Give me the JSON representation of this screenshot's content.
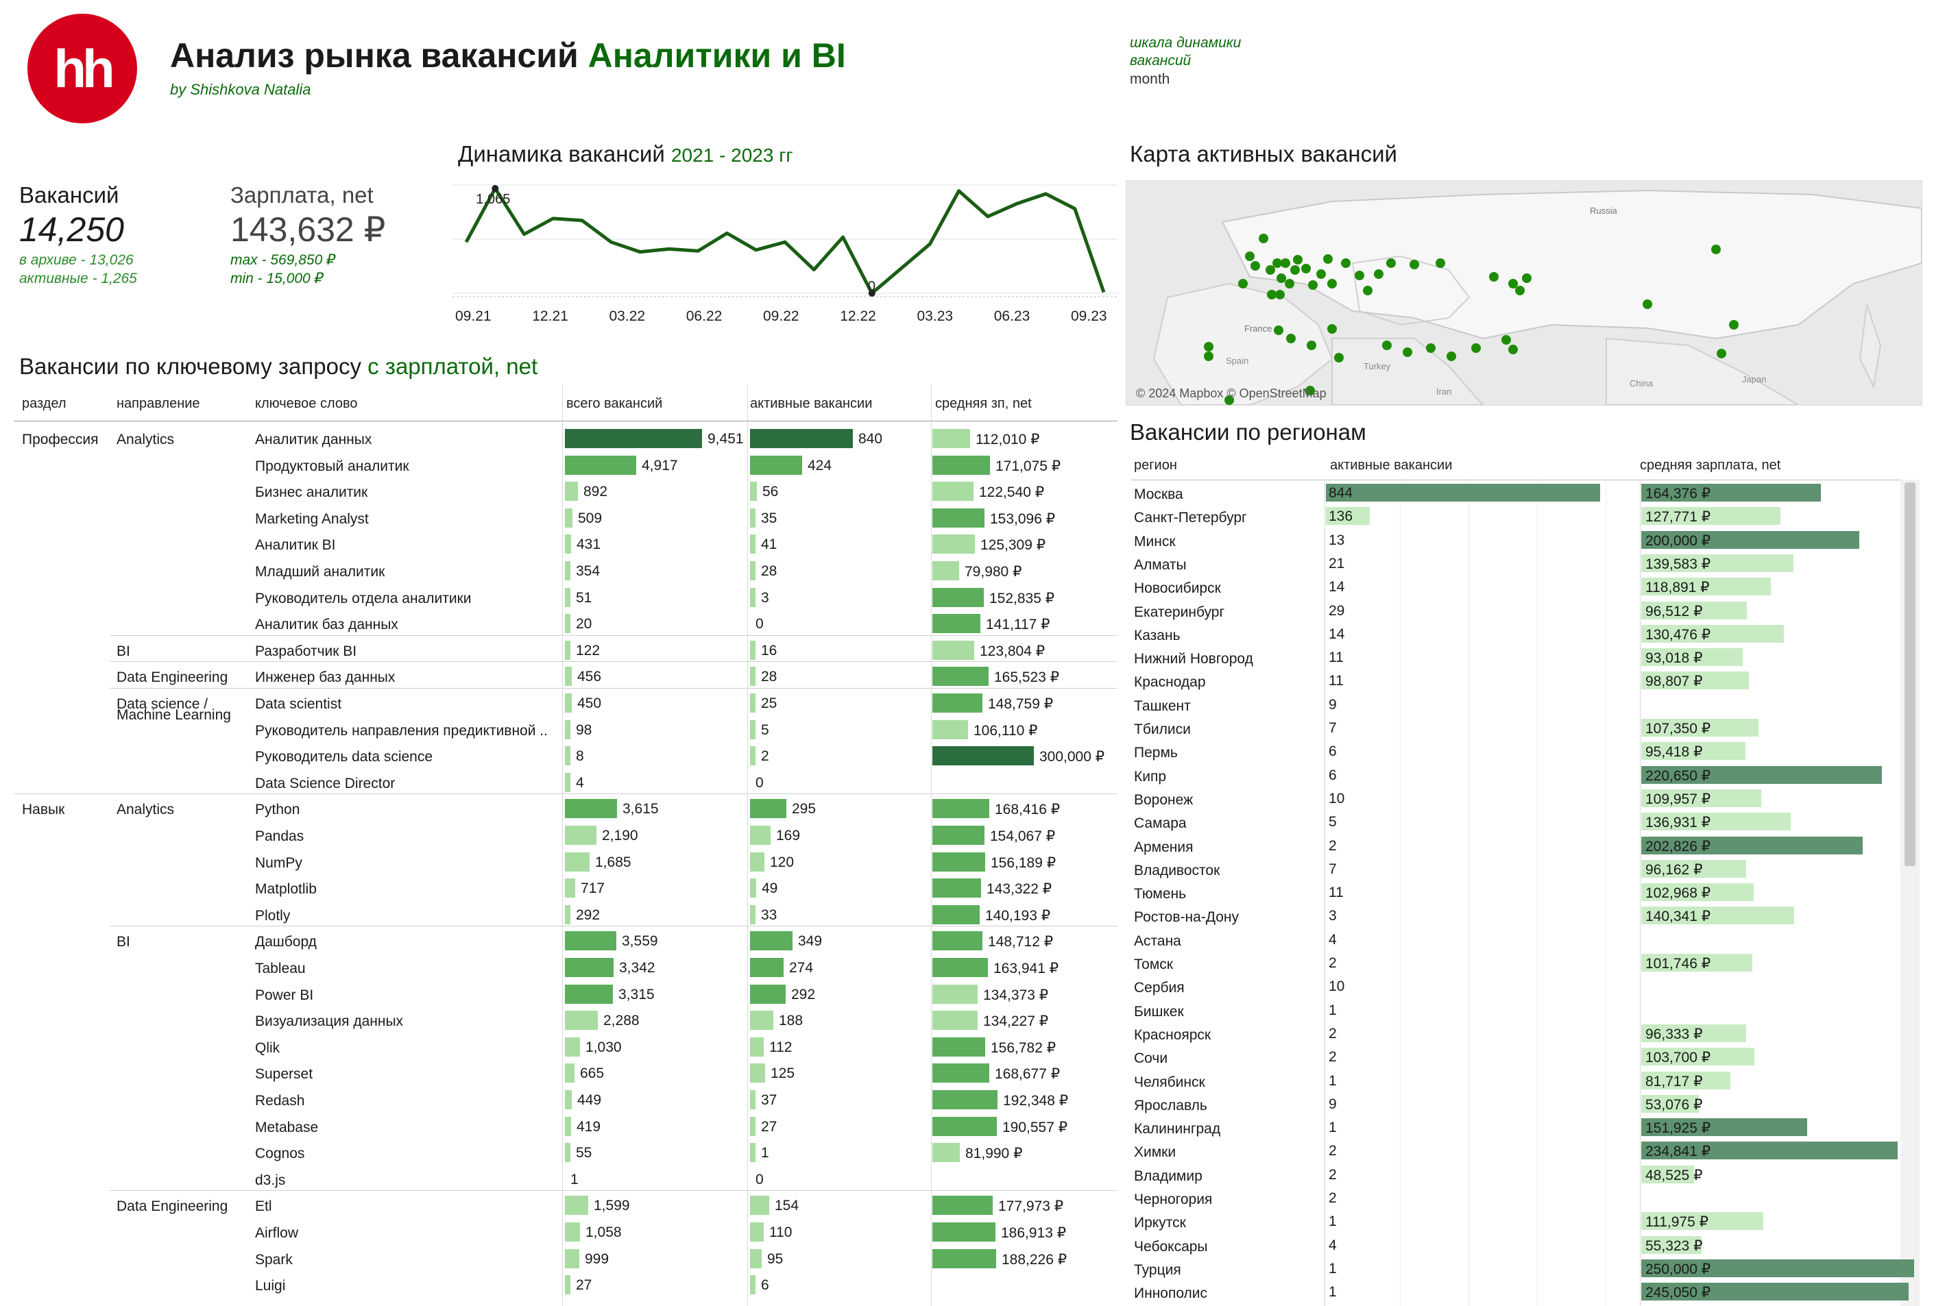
{
  "header": {
    "title_part1": "Анализ рынка вакансий ",
    "title_part2": "Аналитики и BI",
    "byline": "by Shishkova Natalia",
    "logo_text": "hh",
    "param_label": "шкала динамики вакансий",
    "param_value": "month"
  },
  "kpi": {
    "vacancies_label": "Вакансий",
    "vacancies_value": "14,250",
    "archive": "в архиве - 13,026",
    "active": "активные - 1,265",
    "salary_label": "Зарплата, net",
    "salary_value": "143,632 ₽",
    "salary_max": "max - 569,850 ₽",
    "salary_min": "min - 15,000 ₽"
  },
  "dynamics": {
    "title_part1": "Динамика вакансий ",
    "title_part2": "2021 - 2023 гг",
    "max_label": "1,065",
    "min_label": "0"
  },
  "chart_data": {
    "type": "line",
    "title": "Динамика вакансий 2021 - 2023 гг",
    "x_ticks": [
      "09.21",
      "12.21",
      "03.22",
      "06.22",
      "09.22",
      "12.22",
      "03.23",
      "06.23",
      "09.23"
    ],
    "values": [
      520,
      1065,
      600,
      760,
      740,
      520,
      420,
      450,
      430,
      610,
      440,
      520,
      240,
      570,
      0,
      250,
      500,
      1040,
      780,
      910,
      1010,
      860,
      10
    ],
    "ylim": [
      0,
      1100
    ]
  },
  "map": {
    "title": "Карта активных вакансий",
    "attribution": "© 2024 Mapbox © OpenStreetMap",
    "labels": [
      "Russia",
      "France",
      "Spain",
      "Turkey",
      "Iran",
      "China",
      "Japan"
    ],
    "point_color": "#1f8c06"
  },
  "keyword": {
    "title_part1": "Вакансии по ключевому запросу ",
    "title_part2": "с зарплатой, net",
    "headers": [
      "раздел",
      "направление",
      "ключевое слово",
      "всего вакансий",
      "активные  вакансии",
      "средняя зп, net"
    ],
    "rows": [
      {
        "section": "Профессия",
        "direction": "Analytics",
        "keyword": "Аналитик данных",
        "total": 9451,
        "total_label": "9,451",
        "active": 840,
        "active_label": "840",
        "salary": 112010,
        "salary_label": "112,010 ₽"
      },
      {
        "section": "",
        "direction": "",
        "keyword": "Продуктовый аналитик",
        "total": 4917,
        "total_label": "4,917",
        "active": 424,
        "active_label": "424",
        "salary": 171075,
        "salary_label": "171,075 ₽"
      },
      {
        "section": "",
        "direction": "",
        "keyword": "Бизнес аналитик",
        "total": 892,
        "total_label": "892",
        "active": 56,
        "active_label": "56",
        "salary": 122540,
        "salary_label": "122,540 ₽"
      },
      {
        "section": "",
        "direction": "",
        "keyword": "Marketing Analyst",
        "total": 509,
        "total_label": "509",
        "active": 35,
        "active_label": "35",
        "salary": 153096,
        "salary_label": "153,096 ₽"
      },
      {
        "section": "",
        "direction": "",
        "keyword": "Аналитик BI",
        "total": 431,
        "total_label": "431",
        "active": 41,
        "active_label": "41",
        "salary": 125309,
        "salary_label": "125,309 ₽"
      },
      {
        "section": "",
        "direction": "",
        "keyword": "Младший аналитик",
        "total": 354,
        "total_label": "354",
        "active": 28,
        "active_label": "28",
        "salary": 79980,
        "salary_label": "79,980 ₽"
      },
      {
        "section": "",
        "direction": "",
        "keyword": "Руководитель отдела аналитики",
        "total": 51,
        "total_label": "51",
        "active": 3,
        "active_label": "3",
        "salary": 152835,
        "salary_label": "152,835 ₽"
      },
      {
        "section": "",
        "direction": "",
        "keyword": "Аналитик баз данных",
        "total": 20,
        "total_label": "20",
        "active": 0,
        "active_label": "0",
        "salary": 141117,
        "salary_label": "141,117 ₽"
      },
      {
        "section": "",
        "direction": "BI",
        "keyword": "Разработчик BI",
        "total": 122,
        "total_label": "122",
        "active": 16,
        "active_label": "16",
        "salary": 123804,
        "salary_label": "123,804 ₽",
        "sep": "dir"
      },
      {
        "section": "",
        "direction": "Data Engineering",
        "keyword": "Инженер баз данных",
        "total": 456,
        "total_label": "456",
        "active": 28,
        "active_label": "28",
        "salary": 165523,
        "salary_label": "165,523 ₽",
        "sep": "dir"
      },
      {
        "section": "",
        "direction": "Data science /",
        "direction2": "Machine Learning",
        "keyword": "Data scientist",
        "total": 450,
        "total_label": "450",
        "active": 25,
        "active_label": "25",
        "salary": 148759,
        "salary_label": "148,759 ₽",
        "sep": "dir"
      },
      {
        "section": "",
        "direction": "",
        "keyword": "Руководитель направления предиктивной ..",
        "total": 98,
        "total_label": "98",
        "active": 5,
        "active_label": "5",
        "salary": 106110,
        "salary_label": "106,110 ₽"
      },
      {
        "section": "",
        "direction": "",
        "keyword": "Руководитель data science",
        "total": 8,
        "total_label": "8",
        "active": 2,
        "active_label": "2",
        "salary": 300000,
        "salary_label": "300,000 ₽"
      },
      {
        "section": "",
        "direction": "",
        "keyword": "Data Science Director",
        "total": 4,
        "total_label": "4",
        "active": 0,
        "active_label": "0",
        "salary": null,
        "salary_label": ""
      },
      {
        "section": "Навык",
        "direction": "Analytics",
        "keyword": "Python",
        "total": 3615,
        "total_label": "3,615",
        "active": 295,
        "active_label": "295",
        "salary": 168416,
        "salary_label": "168,416 ₽",
        "sep": "sec"
      },
      {
        "section": "",
        "direction": "",
        "keyword": "Pandas",
        "total": 2190,
        "total_label": "2,190",
        "active": 169,
        "active_label": "169",
        "salary": 154067,
        "salary_label": "154,067 ₽"
      },
      {
        "section": "",
        "direction": "",
        "keyword": "NumPy",
        "total": 1685,
        "total_label": "1,685",
        "active": 120,
        "active_label": "120",
        "salary": 156189,
        "salary_label": "156,189 ₽"
      },
      {
        "section": "",
        "direction": "",
        "keyword": "Matplotlib",
        "total": 717,
        "total_label": "717",
        "active": 49,
        "active_label": "49",
        "salary": 143322,
        "salary_label": "143,322 ₽"
      },
      {
        "section": "",
        "direction": "",
        "keyword": "Plotly",
        "total": 292,
        "total_label": "292",
        "active": 33,
        "active_label": "33",
        "salary": 140193,
        "salary_label": "140,193 ₽"
      },
      {
        "section": "",
        "direction": "BI",
        "keyword": "Дашборд",
        "total": 3559,
        "total_label": "3,559",
        "active": 349,
        "active_label": "349",
        "salary": 148712,
        "salary_label": "148,712 ₽",
        "sep": "dir"
      },
      {
        "section": "",
        "direction": "",
        "keyword": "Tableau",
        "total": 3342,
        "total_label": "3,342",
        "active": 274,
        "active_label": "274",
        "salary": 163941,
        "salary_label": "163,941 ₽"
      },
      {
        "section": "",
        "direction": "",
        "keyword": "Power BI",
        "total": 3315,
        "total_label": "3,315",
        "active": 292,
        "active_label": "292",
        "salary": 134373,
        "salary_label": "134,373 ₽"
      },
      {
        "section": "",
        "direction": "",
        "keyword": "Визуализация данных",
        "total": 2288,
        "total_label": "2,288",
        "active": 188,
        "active_label": "188",
        "salary": 134227,
        "salary_label": "134,227 ₽"
      },
      {
        "section": "",
        "direction": "",
        "keyword": "Qlik",
        "total": 1030,
        "total_label": "1,030",
        "active": 112,
        "active_label": "112",
        "salary": 156782,
        "salary_label": "156,782 ₽"
      },
      {
        "section": "",
        "direction": "",
        "keyword": "Superset",
        "total": 665,
        "total_label": "665",
        "active": 125,
        "active_label": "125",
        "salary": 168677,
        "salary_label": "168,677 ₽"
      },
      {
        "section": "",
        "direction": "",
        "keyword": "Redash",
        "total": 449,
        "total_label": "449",
        "active": 37,
        "active_label": "37",
        "salary": 192348,
        "salary_label": "192,348 ₽"
      },
      {
        "section": "",
        "direction": "",
        "keyword": "Metabase",
        "total": 419,
        "total_label": "419",
        "active": 27,
        "active_label": "27",
        "salary": 190557,
        "salary_label": "190,557 ₽"
      },
      {
        "section": "",
        "direction": "",
        "keyword": "Cognos",
        "total": 55,
        "total_label": "55",
        "active": 1,
        "active_label": "1",
        "salary": 81990,
        "salary_label": "81,990 ₽"
      },
      {
        "section": "",
        "direction": "",
        "keyword": "d3.js",
        "total": 1,
        "total_label": "1",
        "active": 0,
        "active_label": "0",
        "salary": null,
        "salary_label": ""
      },
      {
        "section": "",
        "direction": "Data Engineering",
        "keyword": "Etl",
        "total": 1599,
        "total_label": "1,599",
        "active": 154,
        "active_label": "154",
        "salary": 177973,
        "salary_label": "177,973 ₽",
        "sep": "dir"
      },
      {
        "section": "",
        "direction": "",
        "keyword": "Airflow",
        "total": 1058,
        "total_label": "1,058",
        "active": 110,
        "active_label": "110",
        "salary": 186913,
        "salary_label": "186,913 ₽"
      },
      {
        "section": "",
        "direction": "",
        "keyword": "Spark",
        "total": 999,
        "total_label": "999",
        "active": 95,
        "active_label": "95",
        "salary": 188226,
        "salary_label": "188,226 ₽"
      },
      {
        "section": "",
        "direction": "",
        "keyword": "Luigi",
        "total": 27,
        "total_label": "27",
        "active": 6,
        "active_label": "6",
        "salary": null,
        "salary_label": ""
      }
    ]
  },
  "regions": {
    "title": "Вакансии по регионам",
    "headers": [
      "регион",
      "активные  вакансии",
      "средняя зарплата, net"
    ],
    "rows": [
      {
        "name": "Москва",
        "active": 844,
        "salary": 164376,
        "salary_label": "164,376 ₽"
      },
      {
        "name": "Санкт-Петербург",
        "active": 136,
        "salary": 127771,
        "salary_label": "127,771 ₽"
      },
      {
        "name": "Минск",
        "active": 13,
        "salary": 200000,
        "salary_label": "200,000 ₽"
      },
      {
        "name": "Алматы",
        "active": 21,
        "salary": 139583,
        "salary_label": "139,583 ₽"
      },
      {
        "name": "Новосибирск",
        "active": 14,
        "salary": 118891,
        "salary_label": "118,891 ₽"
      },
      {
        "name": "Екатеринбург",
        "active": 29,
        "salary": 96512,
        "salary_label": "96,512 ₽"
      },
      {
        "name": "Казань",
        "active": 14,
        "salary": 130476,
        "salary_label": "130,476 ₽"
      },
      {
        "name": "Нижний Новгород",
        "active": 11,
        "salary": 93018,
        "salary_label": "93,018 ₽"
      },
      {
        "name": "Краснодар",
        "active": 11,
        "salary": 98807,
        "salary_label": "98,807 ₽"
      },
      {
        "name": "Ташкент",
        "active": 9,
        "salary": null,
        "salary_label": ""
      },
      {
        "name": "Тбилиси",
        "active": 7,
        "salary": 107350,
        "salary_label": "107,350 ₽"
      },
      {
        "name": "Пермь",
        "active": 6,
        "salary": 95418,
        "salary_label": "95,418 ₽"
      },
      {
        "name": "Кипр",
        "active": 6,
        "salary": 220650,
        "salary_label": "220,650 ₽"
      },
      {
        "name": "Воронеж",
        "active": 10,
        "salary": 109957,
        "salary_label": "109,957 ₽"
      },
      {
        "name": "Самара",
        "active": 5,
        "salary": 136931,
        "salary_label": "136,931 ₽"
      },
      {
        "name": "Армения",
        "active": 2,
        "salary": 202826,
        "salary_label": "202,826 ₽"
      },
      {
        "name": "Владивосток",
        "active": 7,
        "salary": 96162,
        "salary_label": "96,162 ₽"
      },
      {
        "name": "Тюмень",
        "active": 11,
        "salary": 102968,
        "salary_label": "102,968 ₽"
      },
      {
        "name": "Ростов-на-Дону",
        "active": 3,
        "salary": 140341,
        "salary_label": "140,341 ₽"
      },
      {
        "name": "Астана",
        "active": 4,
        "salary": null,
        "salary_label": ""
      },
      {
        "name": "Томск",
        "active": 2,
        "salary": 101746,
        "salary_label": "101,746 ₽"
      },
      {
        "name": "Сербия",
        "active": 10,
        "salary": null,
        "salary_label": ""
      },
      {
        "name": "Бишкек",
        "active": 1,
        "salary": null,
        "salary_label": ""
      },
      {
        "name": "Красноярск",
        "active": 2,
        "salary": 96333,
        "salary_label": "96,333 ₽"
      },
      {
        "name": "Сочи",
        "active": 2,
        "salary": 103700,
        "salary_label": "103,700 ₽"
      },
      {
        "name": "Челябинск",
        "active": 1,
        "salary": 81717,
        "salary_label": "81,717 ₽"
      },
      {
        "name": "Ярославль",
        "active": 9,
        "salary": 53076,
        "salary_label": "53,076 ₽"
      },
      {
        "name": "Калининград",
        "active": 1,
        "salary": 151925,
        "salary_label": "151,925 ₽"
      },
      {
        "name": "Химки",
        "active": 2,
        "salary": 234841,
        "salary_label": "234,841 ₽"
      },
      {
        "name": "Владимир",
        "active": 2,
        "salary": 48525,
        "salary_label": "48,525 ₽"
      },
      {
        "name": "Черногория",
        "active": 2,
        "salary": null,
        "salary_label": ""
      },
      {
        "name": "Иркутск",
        "active": 1,
        "salary": 111975,
        "salary_label": "111,975 ₽"
      },
      {
        "name": "Чебоксары",
        "active": 4,
        "salary": 55323,
        "salary_label": "55,323 ₽"
      },
      {
        "name": "Турция",
        "active": 1,
        "salary": 250000,
        "salary_label": "250,000 ₽"
      },
      {
        "name": "Иннополис",
        "active": 1,
        "salary": 245050,
        "salary_label": "245,050 ₽"
      }
    ]
  },
  "colors": {
    "brand_red": "#d6001c",
    "accent_green": "#0b6a0b",
    "line_green": "#1a5e14",
    "bar_dark": "#2b6d3e",
    "bar_mid": "#5cae5c",
    "bar_light": "#a8dca0",
    "region_dark": "#5f9270",
    "region_light": "#c9ebc4"
  }
}
